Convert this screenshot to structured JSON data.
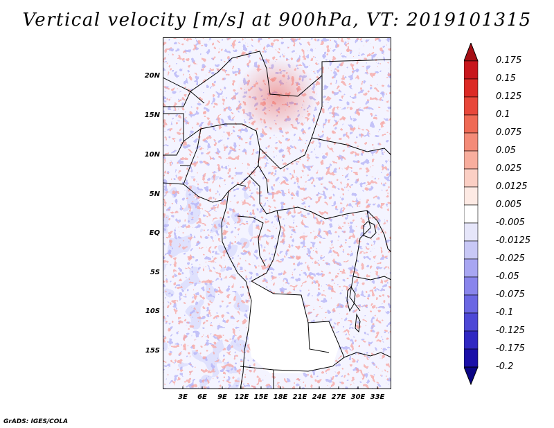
{
  "title": "Vertical velocity [m/s] at 900hPa, VT: 2019101315",
  "latitude_labels": [
    "20N",
    "15N",
    "10N",
    "5N",
    "EQ",
    "5S",
    "10S",
    "15S"
  ],
  "longitude_labels": [
    "3E",
    "6E",
    "9E",
    "12E",
    "15E",
    "18E",
    "21E",
    "24E",
    "27E",
    "30E",
    "33E"
  ],
  "colorbar": {
    "levels": [
      "0.175",
      "0.15",
      "0.125",
      "0.1",
      "0.075",
      "0.05",
      "0.025",
      "0.0125",
      "0.005",
      "-0.005",
      "-0.0125",
      "-0.025",
      "-0.05",
      "-0.075",
      "-0.1",
      "-0.125",
      "-0.175",
      "-0.2"
    ],
    "colors": [
      "#a50f15",
      "#c8171d",
      "#dc2a25",
      "#e8473a",
      "#ef6a55",
      "#f48b78",
      "#f8ae9e",
      "#fbcfc4",
      "#fdeae4",
      "#ffffff",
      "#e6e6fa",
      "#c8c8f6",
      "#a8a6f2",
      "#8985ec",
      "#6b67e3",
      "#4d48d6",
      "#3028c2",
      "#1a0fa8",
      "#0b0585"
    ]
  },
  "credit": "GrADS: IGES/COLA"
}
